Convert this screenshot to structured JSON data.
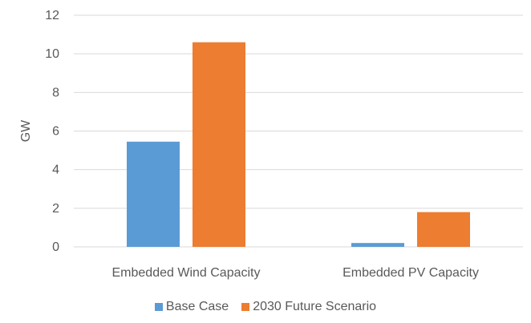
{
  "chart_data": {
    "type": "bar",
    "title": "",
    "xlabel": "",
    "ylabel": "GW",
    "ylim": [
      0,
      12
    ],
    "yticks": [
      "0",
      "2",
      "4",
      "6",
      "8",
      "10",
      "12"
    ],
    "grid": true,
    "legend_position": "bottom",
    "categories": [
      "Embedded Wind Capacity",
      "Embedded PV Capacity"
    ],
    "series": [
      {
        "name": "Base Case",
        "color": "#5B9BD5",
        "values": [
          5.45,
          0.2
        ]
      },
      {
        "name": "2030 Future Scenario",
        "color": "#ED7D31",
        "values": [
          10.6,
          1.8
        ]
      }
    ]
  }
}
